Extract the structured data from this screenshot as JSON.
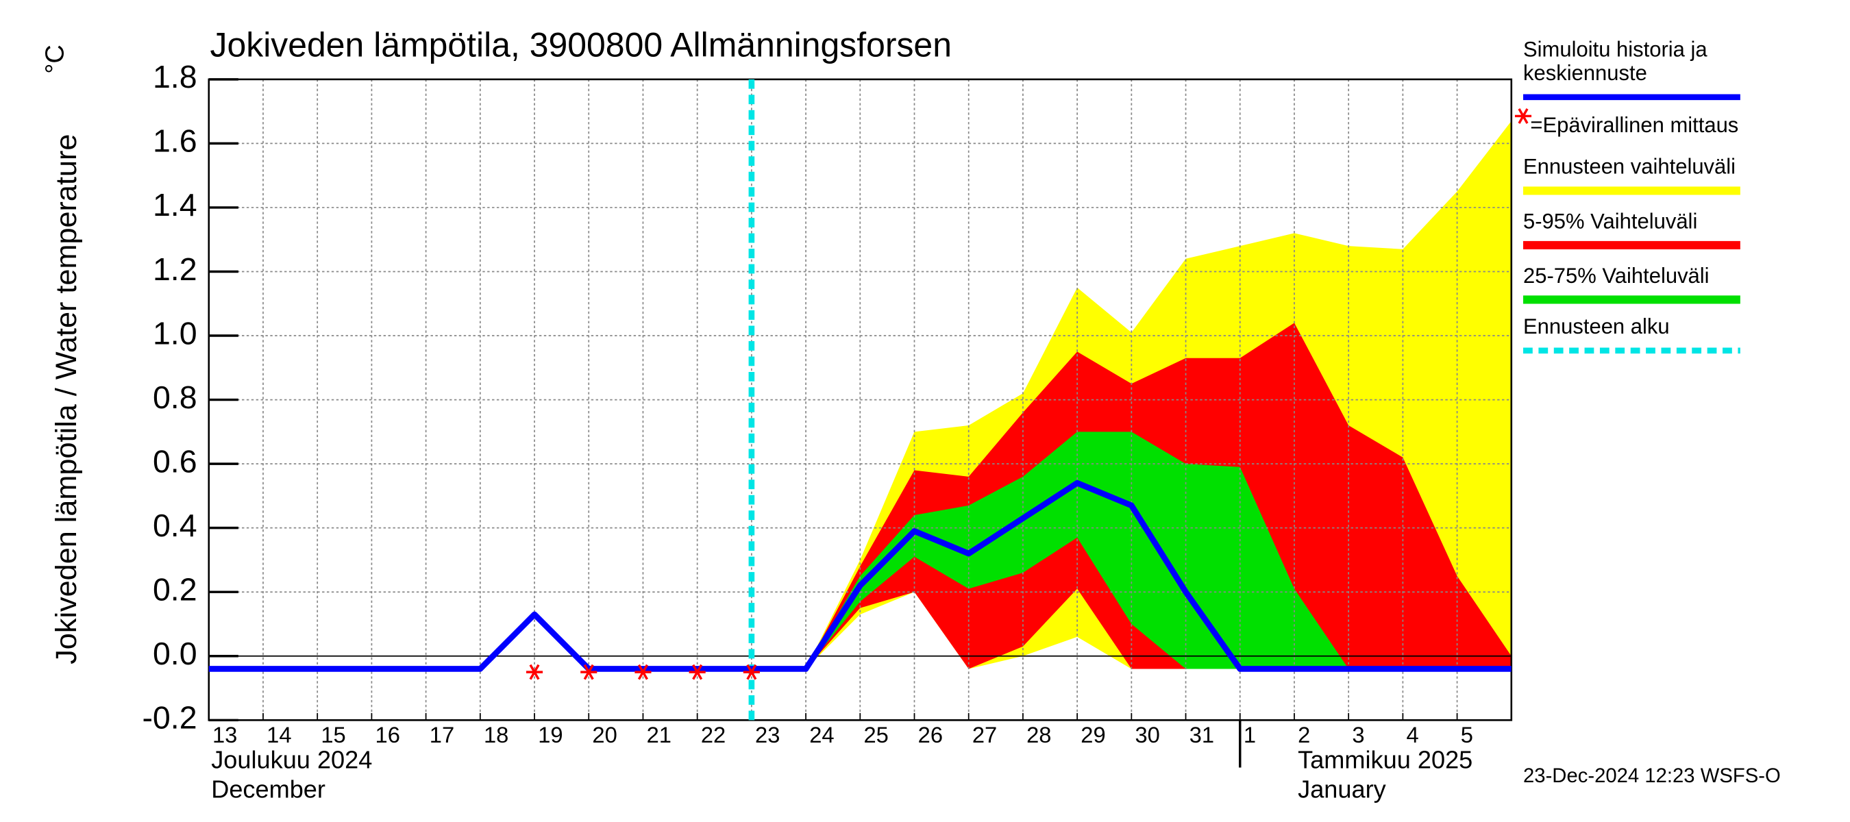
{
  "chart_data": {
    "type": "band-line",
    "title": "Jokiveden lämpötila, 3900800 Allmänningsforsen",
    "y_label": "Jokiveden lämpötila / Water temperature",
    "y_unit": "°C",
    "month_labels": [
      {
        "fi": "Joulukuu  2024",
        "en": "December"
      },
      {
        "fi": "Tammikuu  2025",
        "en": "January"
      }
    ],
    "footer": "23-Dec-2024 12:23 WSFS-O",
    "categories": [
      "13",
      "14",
      "15",
      "16",
      "17",
      "18",
      "19",
      "20",
      "21",
      "22",
      "23",
      "24",
      "25",
      "26",
      "27",
      "28",
      "29",
      "30",
      "31",
      "1",
      "2",
      "3",
      "4",
      "5",
      null
    ],
    "ylim": [
      -0.2,
      1.8
    ],
    "yticks": [
      -0.2,
      {
        "value": 0.0,
        "label": "0.0"
      },
      0.2,
      0.4,
      0.6,
      0.8,
      {
        "value": 1.0,
        "label": "1.0"
      },
      1.2,
      1.4,
      1.6,
      1.8
    ],
    "grid": true,
    "forecast_start": "23",
    "bands": [
      {
        "name": "Ennusteen vaihteluväli",
        "color": "#ffff00",
        "upper": [
          null,
          null,
          null,
          null,
          null,
          null,
          null,
          null,
          null,
          null,
          null,
          -0.04,
          0.3,
          0.7,
          0.72,
          0.82,
          1.15,
          1.01,
          1.24,
          1.28,
          1.32,
          1.28,
          1.27,
          1.45,
          1.67
        ],
        "lower": [
          null,
          null,
          null,
          null,
          null,
          null,
          null,
          null,
          null,
          null,
          null,
          -0.04,
          0.13,
          0.2,
          -0.04,
          0.0,
          0.06,
          -0.04,
          -0.04,
          -0.04,
          -0.04,
          -0.04,
          -0.04,
          -0.04,
          -0.04
        ]
      },
      {
        "name": "5-95% Vaihteluväli",
        "color": "#ff0000",
        "upper": [
          null,
          null,
          null,
          null,
          null,
          null,
          null,
          null,
          null,
          null,
          null,
          -0.04,
          0.28,
          0.58,
          0.56,
          0.76,
          0.95,
          0.85,
          0.93,
          0.93,
          1.04,
          0.72,
          0.62,
          0.25,
          0.0
        ],
        "lower": [
          null,
          null,
          null,
          null,
          null,
          null,
          null,
          null,
          null,
          null,
          null,
          -0.04,
          0.15,
          0.2,
          -0.04,
          0.03,
          0.21,
          -0.04,
          -0.04,
          -0.04,
          -0.04,
          -0.04,
          -0.04,
          -0.04,
          -0.04
        ]
      },
      {
        "name": "25-75% Vaihteluväli",
        "color": "#00e000",
        "upper": [
          null,
          null,
          null,
          null,
          null,
          null,
          null,
          null,
          null,
          null,
          null,
          -0.04,
          0.25,
          0.44,
          0.47,
          0.56,
          0.7,
          0.7,
          0.6,
          0.59,
          0.21,
          -0.04,
          -0.04,
          -0.04,
          -0.04
        ],
        "lower": [
          null,
          null,
          null,
          null,
          null,
          null,
          null,
          null,
          null,
          null,
          null,
          -0.04,
          0.17,
          0.31,
          0.21,
          0.26,
          0.37,
          0.1,
          -0.04,
          -0.04,
          -0.04,
          -0.04,
          -0.04,
          -0.04,
          -0.04
        ]
      }
    ],
    "line": {
      "name": "Simuloitu historia ja keskiennuste",
      "color": "#0000ff",
      "values": [
        -0.04,
        -0.04,
        -0.04,
        -0.04,
        -0.04,
        -0.04,
        0.13,
        -0.04,
        -0.04,
        -0.04,
        -0.04,
        -0.04,
        0.22,
        0.39,
        0.32,
        0.43,
        0.54,
        0.47,
        0.2,
        -0.04,
        -0.04,
        -0.04,
        -0.04,
        -0.04,
        -0.04
      ]
    },
    "measurements": {
      "name": "=Epävirallinen mittaus",
      "color": "#ff0000",
      "values": [
        null,
        null,
        null,
        null,
        null,
        null,
        -0.05,
        -0.05,
        -0.05,
        -0.05,
        -0.05,
        null,
        null,
        null,
        null,
        null,
        null,
        null,
        null,
        null,
        null,
        null,
        null,
        null,
        null
      ]
    },
    "forecast_line": {
      "name": "Ennusteen alku",
      "color": "#00e5e5"
    }
  }
}
